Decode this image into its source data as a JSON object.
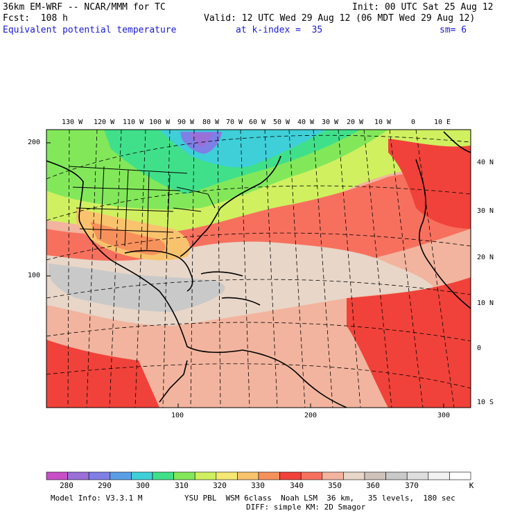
{
  "header": {
    "model_line": "36km EM-WRF -- NCAR/MMM for TC",
    "init_line": "Init: 00 UTC Sat 25 Aug 12",
    "fcst_line": "Fcst:  108 h",
    "valid_line": "Valid: 12 UTC Wed 29 Aug 12 (06 MDT Wed 29 Aug 12)",
    "field_name": "Equivalent potential temperature",
    "level_label": "at k-index =  35",
    "smooth_label": "sm= 6"
  },
  "map": {
    "lon_labels": [
      "130 W",
      "120 W",
      "110 W",
      "100 W",
      "90 W",
      "80 W",
      "70 W",
      "60 W",
      "50 W",
      "40 W",
      "30 W",
      "20 W",
      "10 W",
      "0",
      "10 E"
    ],
    "lat_labels": [
      "40 N",
      "30 N",
      "20 N",
      "10 N",
      "0",
      "10 S"
    ],
    "y_grid_labels": [
      "200",
      "100"
    ],
    "x_grid_labels": [
      "100",
      "200",
      "300"
    ]
  },
  "colorbar": {
    "labels": [
      "280",
      "290",
      "300",
      "310",
      "320",
      "330",
      "340",
      "350",
      "360",
      "370",
      "K"
    ],
    "colors": [
      "#c84fc8",
      "#9b6fd8",
      "#7f7fe6",
      "#5a9fe6",
      "#3fcfd8",
      "#40e08a",
      "#82e85a",
      "#d0f060",
      "#f5e873",
      "#f9c36e",
      "#f7915c",
      "#f0423a",
      "#f7705e",
      "#f2b49e",
      "#e8d6c8",
      "#cfc3bc",
      "#c9c9c9",
      "#dedede",
      "#f2f2f2",
      "#ffffff"
    ]
  },
  "footer": {
    "model_info": "Model Info: V3.3.1 M",
    "physics": "YSU PBL  WSM 6class  Noah LSM  36 km,   35 levels,  180 sec",
    "diffusion": "DIFF: simple KM: 2D Smagor"
  }
}
